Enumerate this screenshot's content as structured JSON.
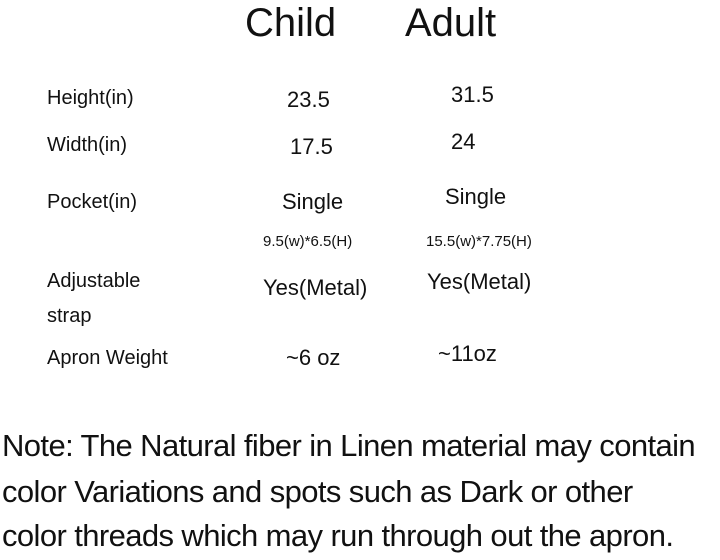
{
  "columns": [
    "Child",
    "Adult"
  ],
  "rows": [
    {
      "label": "Height(in)",
      "child": "23.5",
      "adult": "31.5"
    },
    {
      "label": "Width(in)",
      "child": "17.5",
      "adult": "24"
    },
    {
      "label": "Pocket(in)",
      "child": "Single",
      "adult": "Single",
      "child_detail": "9.5(w)*6.5(H)",
      "adult_detail": "15.5(w)*7.75(H)"
    },
    {
      "label_line1": "Adjustable",
      "label_line2": "strap",
      "child": "Yes(Metal)",
      "adult": "Yes(Metal)"
    },
    {
      "label": "Apron Weight",
      "child": "~6 oz",
      "adult": "~11oz"
    }
  ],
  "note": {
    "line1": "Note: The Natural fiber in Linen material may contain",
    "line2": "color Variations and spots such as Dark or other",
    "line3": "color threads which may run through out the apron."
  }
}
